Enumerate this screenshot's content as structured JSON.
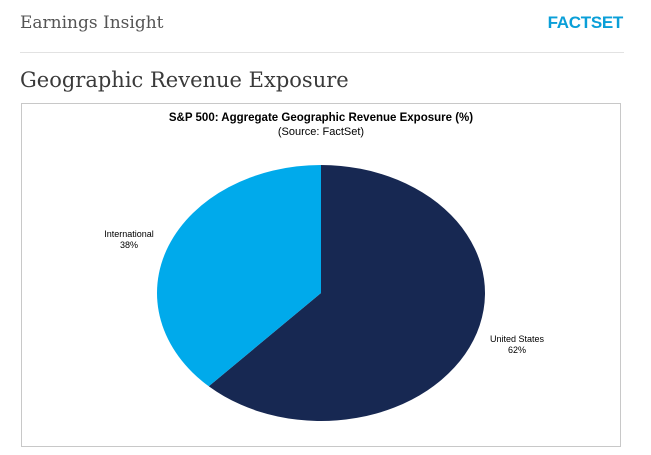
{
  "header": {
    "title": "Earnings Insight",
    "brand": "FACTSET",
    "brand_color": "#0a9fd8"
  },
  "section": {
    "title": "Geographic Revenue Exposure"
  },
  "chart_data": {
    "type": "pie",
    "title": "S&P 500: Aggregate Geographic Revenue Exposure (%)",
    "subtitle": "(Source: FactSet)",
    "slices": [
      {
        "name": "United States",
        "value": 62,
        "label": "62%",
        "color": "#172852"
      },
      {
        "name": "International",
        "value": 38,
        "label": "38%",
        "color": "#00aaeb"
      }
    ],
    "start_angle_deg": 0,
    "direction": "clockwise",
    "legend": "none"
  }
}
